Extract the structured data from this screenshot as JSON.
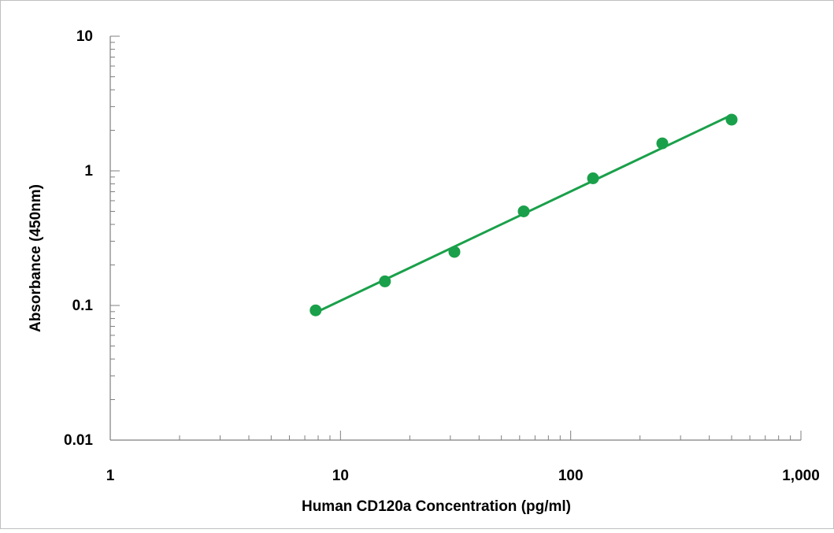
{
  "chart_data": {
    "type": "scatter",
    "title": "",
    "xlabel": "Human CD120a Concentration (pg/ml)",
    "ylabel": "Absorbance (450nm)",
    "x_scale": "log",
    "y_scale": "log",
    "xlim": [
      1,
      1000
    ],
    "ylim": [
      0.01,
      10
    ],
    "x_ticks": [
      1,
      10,
      100,
      1000
    ],
    "x_tick_labels": [
      "1",
      "10",
      "100",
      "1,000"
    ],
    "y_ticks": [
      0.01,
      0.1,
      1,
      10
    ],
    "y_tick_labels": [
      "0.01",
      "0.1",
      "1",
      "10"
    ],
    "grid": false,
    "legend": "none",
    "series": [
      {
        "x": [
          7.8,
          15.6,
          31.25,
          62.5,
          125,
          250,
          500
        ],
        "y": [
          0.092,
          0.151,
          0.25,
          0.5,
          0.88,
          1.6,
          2.4
        ],
        "fit_line": true
      }
    ],
    "colors": {
      "series": "#1aa04a",
      "axis": "#7f7f7f",
      "frame": "#bfbfbf",
      "text": "#000000"
    }
  }
}
